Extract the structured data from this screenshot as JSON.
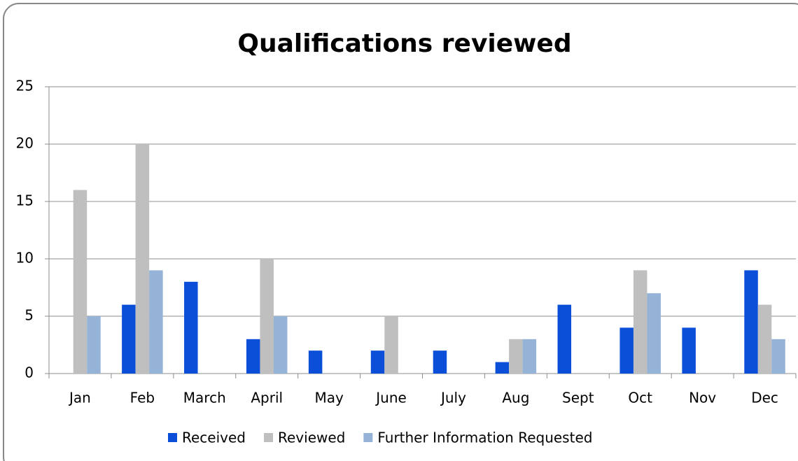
{
  "chart_data": {
    "type": "bar",
    "title": "Qualifications reviewed",
    "categories": [
      "Jan",
      "Feb",
      "March",
      "April",
      "May",
      "June",
      "July",
      "Aug",
      "Sept",
      "Oct",
      "Nov",
      "Dec"
    ],
    "series": [
      {
        "name": "Received",
        "color": "#0b4fd9",
        "values": [
          0,
          6,
          8,
          3,
          2,
          2,
          2,
          1,
          6,
          4,
          4,
          9
        ]
      },
      {
        "name": "Reviewed",
        "color": "#bfbfbf",
        "values": [
          16,
          20,
          0,
          10,
          0,
          5,
          0,
          3,
          0,
          9,
          0,
          6
        ]
      },
      {
        "name": "Further Information Requested",
        "color": "#95b3d7",
        "values": [
          5,
          9,
          0,
          5,
          0,
          0,
          0,
          3,
          0,
          7,
          0,
          3
        ]
      }
    ],
    "ylim": [
      0,
      25
    ],
    "yticks": [
      0,
      5,
      10,
      15,
      20,
      25
    ],
    "grid": true,
    "legend": "bottom"
  }
}
